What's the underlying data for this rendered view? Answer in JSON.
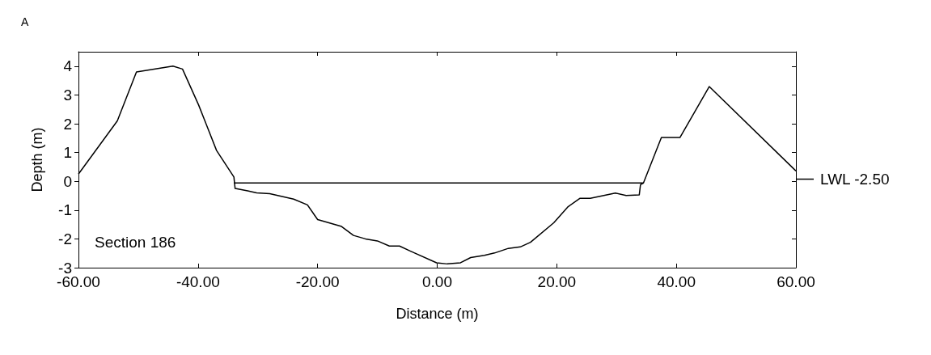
{
  "chart_data": {
    "type": "line",
    "xlabel": "Distance (m)",
    "ylabel": "Depth (m)",
    "xlim": [
      -60,
      60
    ],
    "ylim": [
      -3,
      4.5
    ],
    "xticks": [
      {
        "value": -60,
        "label": "-60.00"
      },
      {
        "value": -40,
        "label": "-40.00"
      },
      {
        "value": -20,
        "label": "-20.00"
      },
      {
        "value": 0,
        "label": "0.00"
      },
      {
        "value": 20,
        "label": "20.00"
      },
      {
        "value": 40,
        "label": "40.00"
      },
      {
        "value": 60,
        "label": "60.00"
      }
    ],
    "yticks": [
      -3,
      -2,
      -1,
      0,
      1,
      2,
      3,
      4
    ],
    "grid": false,
    "marker": "none",
    "line_style": "solid",
    "series": [
      {
        "color": "#000000",
        "x": [
          -60,
          -53.5,
          -50.3,
          -44.2,
          -42.6,
          -39.9,
          -36.9,
          -34.0,
          -33.8,
          -31.7,
          -30.2,
          -28,
          -24,
          -21.7,
          -20,
          -16,
          -14,
          -12,
          -10,
          -8,
          -6.3,
          -4,
          -0.1,
          1.7,
          3.9,
          5.6,
          7.9,
          9.6,
          11.9,
          13.9,
          15.6,
          19.5,
          21.9,
          23.9,
          25.6,
          29.8,
          31.6,
          33.8,
          34.0,
          34.5,
          37.5,
          40.6,
          45.5,
          60
        ],
        "values": [
          0.25,
          2.1,
          3.8,
          4.0,
          3.9,
          2.65,
          1.07,
          0.15,
          -0.25,
          -0.33,
          -0.4,
          -0.43,
          -0.62,
          -0.82,
          -1.33,
          -1.57,
          -1.88,
          -2.0,
          -2.07,
          -2.25,
          -2.25,
          -2.47,
          -2.83,
          -2.87,
          -2.83,
          -2.65,
          -2.57,
          -2.49,
          -2.33,
          -2.28,
          -2.12,
          -1.44,
          -0.88,
          -0.59,
          -0.59,
          -0.41,
          -0.49,
          -0.47,
          -0.12,
          -0.06,
          1.52,
          1.52,
          3.29,
          0.36
        ]
      },
      {
        "color": "#000000",
        "x": [
          -34,
          34.5
        ],
        "values": [
          -0.06,
          -0.06
        ]
      }
    ],
    "annotations": [
      "A",
      "Section 186",
      "LWL -2.50"
    ]
  }
}
